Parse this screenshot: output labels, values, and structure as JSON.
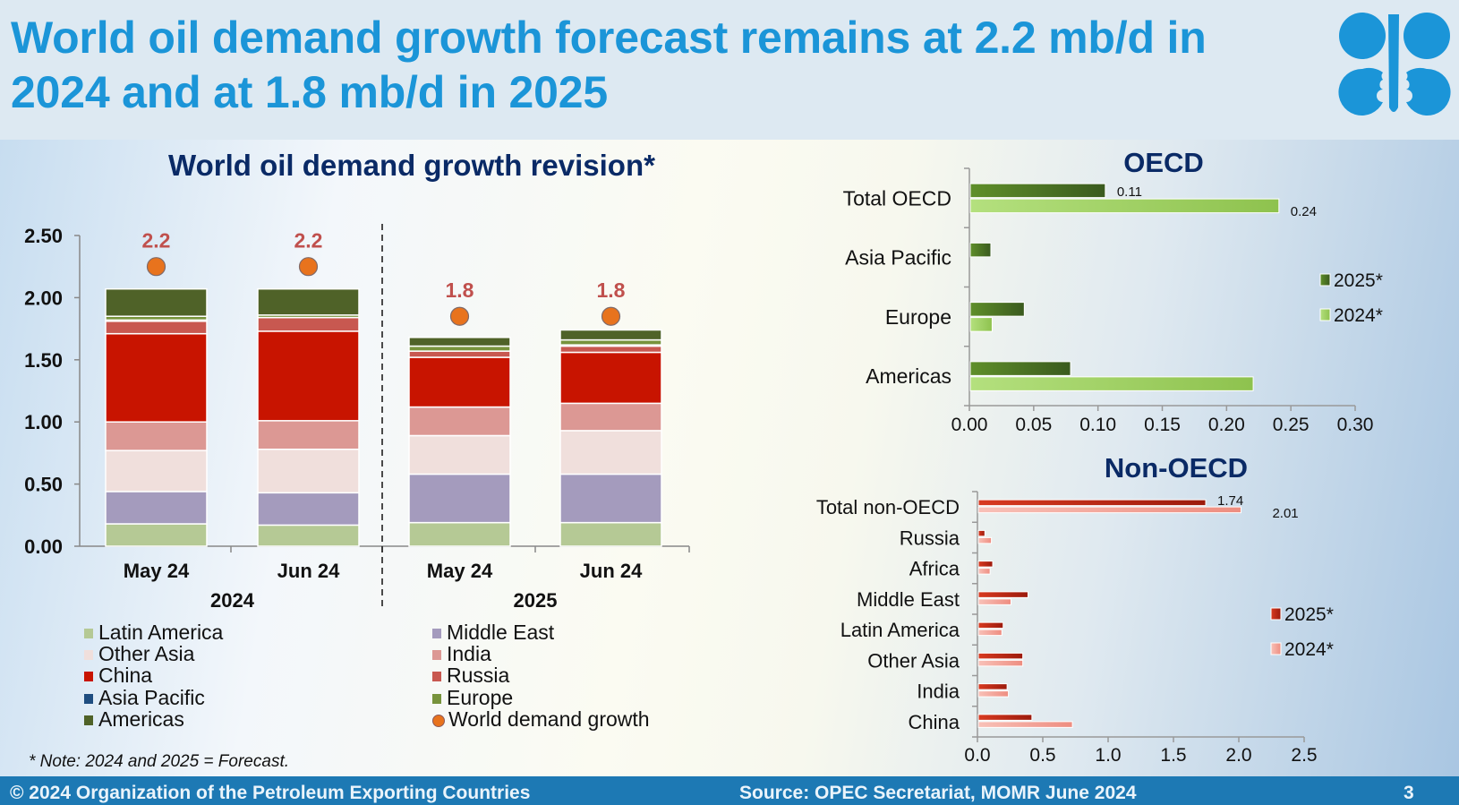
{
  "header": {
    "title_line1": "World oil demand growth forecast remains at 2.2 mb/d in",
    "title_line2": "2024 and at 1.8 mb/d in 2025",
    "logo": "opec-logo"
  },
  "note": "* Note: 2024 and 2025 = Forecast.",
  "footer": {
    "copyright": "© 2024 Organization of the Petroleum Exporting Countries",
    "source": "Source: OPEC Secretariat, MOMR June 2024",
    "page_number": "3"
  },
  "colors": {
    "title_blue": "#1b95d8",
    "chart_title_navy": "#0a2a66",
    "footer_blue": "#1d79b4",
    "growth_label": "#c0504d"
  },
  "chart_data": [
    {
      "id": "revision",
      "type": "bar",
      "stacked": true,
      "title": "World oil demand growth revision*",
      "xlabel": "",
      "ylabel": "",
      "ylim": [
        0,
        2.5
      ],
      "yticks": [
        "0.00",
        "0.50",
        "1.00",
        "1.50",
        "2.00",
        "2.50"
      ],
      "categories": [
        "May 24",
        "Jun 24",
        "May 24",
        "Jun 24"
      ],
      "groups": [
        {
          "label": "2024",
          "categories": [
            0,
            1
          ]
        },
        {
          "label": "2025",
          "categories": [
            2,
            3
          ]
        }
      ],
      "series": [
        {
          "name": "Latin America",
          "color": "#b5c995",
          "values": [
            0.18,
            0.17,
            0.19,
            0.19
          ]
        },
        {
          "name": "Middle East",
          "color": "#a49bbd",
          "values": [
            0.26,
            0.26,
            0.39,
            0.39
          ]
        },
        {
          "name": "Other Asia",
          "color": "#f0dfdc",
          "values": [
            0.33,
            0.35,
            0.31,
            0.35
          ]
        },
        {
          "name": "India",
          "color": "#dc9894",
          "values": [
            0.23,
            0.23,
            0.23,
            0.22
          ]
        },
        {
          "name": "China",
          "color": "#c81400",
          "values": [
            0.71,
            0.72,
            0.4,
            0.41
          ]
        },
        {
          "name": "Russia",
          "color": "#c85850",
          "values": [
            0.1,
            0.11,
            0.05,
            0.05
          ]
        },
        {
          "name": "Asia Pacific",
          "color": "#1e4d80",
          "values": [
            0.01,
            0.0,
            0.0,
            0.01
          ]
        },
        {
          "name": "Europe",
          "color": "#77933c",
          "values": [
            0.03,
            0.02,
            0.04,
            0.04
          ]
        },
        {
          "name": "Americas",
          "color": "#4f6228",
          "values": [
            0.22,
            0.21,
            0.07,
            0.08
          ]
        }
      ],
      "world_demand_growth": {
        "name": "World demand growth",
        "color": "#e8731d",
        "values": [
          2.25,
          2.25,
          1.85,
          1.85
        ],
        "labels": [
          "2.2",
          "2.2",
          "1.8",
          "1.8"
        ]
      },
      "legend": {
        "placement": "bottom",
        "column1": [
          "Latin America",
          "Other Asia",
          "China",
          "Asia Pacific",
          "Americas"
        ],
        "column2": [
          "Middle East",
          "India",
          "Russia",
          "Europe",
          "World demand growth"
        ]
      }
    },
    {
      "id": "oecd",
      "type": "bar",
      "orientation": "horizontal",
      "title": "OECD",
      "xlim": [
        0,
        0.3
      ],
      "xticks": [
        "0.00",
        "0.05",
        "0.10",
        "0.15",
        "0.20",
        "0.25",
        "0.30"
      ],
      "categories": [
        "Total OECD",
        "Asia Pacific",
        "Europe",
        "Americas"
      ],
      "series": [
        {
          "name": "2025*",
          "color": "#4f7a26",
          "values": [
            0.105,
            0.016,
            0.042,
            0.078
          ]
        },
        {
          "name": "2024*",
          "color": "#9fd169",
          "values": [
            0.24,
            0.0,
            0.017,
            0.22
          ]
        }
      ],
      "data_labels": [
        {
          "category": "Total OECD",
          "series": "2025*",
          "text": "0.11"
        },
        {
          "category": "Total OECD",
          "series": "2024*",
          "text": "0.24"
        }
      ],
      "legend": {
        "placement": "right",
        "entries": [
          "2025*",
          "2024*"
        ]
      }
    },
    {
      "id": "non-oecd",
      "type": "bar",
      "orientation": "horizontal",
      "title": "Non-OECD",
      "xlim": [
        0,
        2.5
      ],
      "xticks": [
        "0.0",
        "0.5",
        "1.0",
        "1.5",
        "2.0",
        "2.5"
      ],
      "categories": [
        "Total non-OECD",
        "Russia",
        "Africa",
        "Middle East",
        "Latin America",
        "Other Asia",
        "India",
        "China"
      ],
      "series": [
        {
          "name": "2025*",
          "color": "#c0281a",
          "values": [
            1.74,
            0.05,
            0.11,
            0.38,
            0.19,
            0.34,
            0.22,
            0.41
          ]
        },
        {
          "name": "2024*",
          "color": "#f2a49a",
          "values": [
            2.01,
            0.1,
            0.09,
            0.25,
            0.18,
            0.34,
            0.23,
            0.72
          ]
        }
      ],
      "data_labels": [
        {
          "category": "Total non-OECD",
          "series": "2025*",
          "text": "1.74"
        },
        {
          "category": "Total non-OECD",
          "series": "2024*",
          "text": "2.01"
        }
      ],
      "legend": {
        "placement": "right",
        "entries": [
          "2025*",
          "2024*"
        ]
      }
    }
  ]
}
